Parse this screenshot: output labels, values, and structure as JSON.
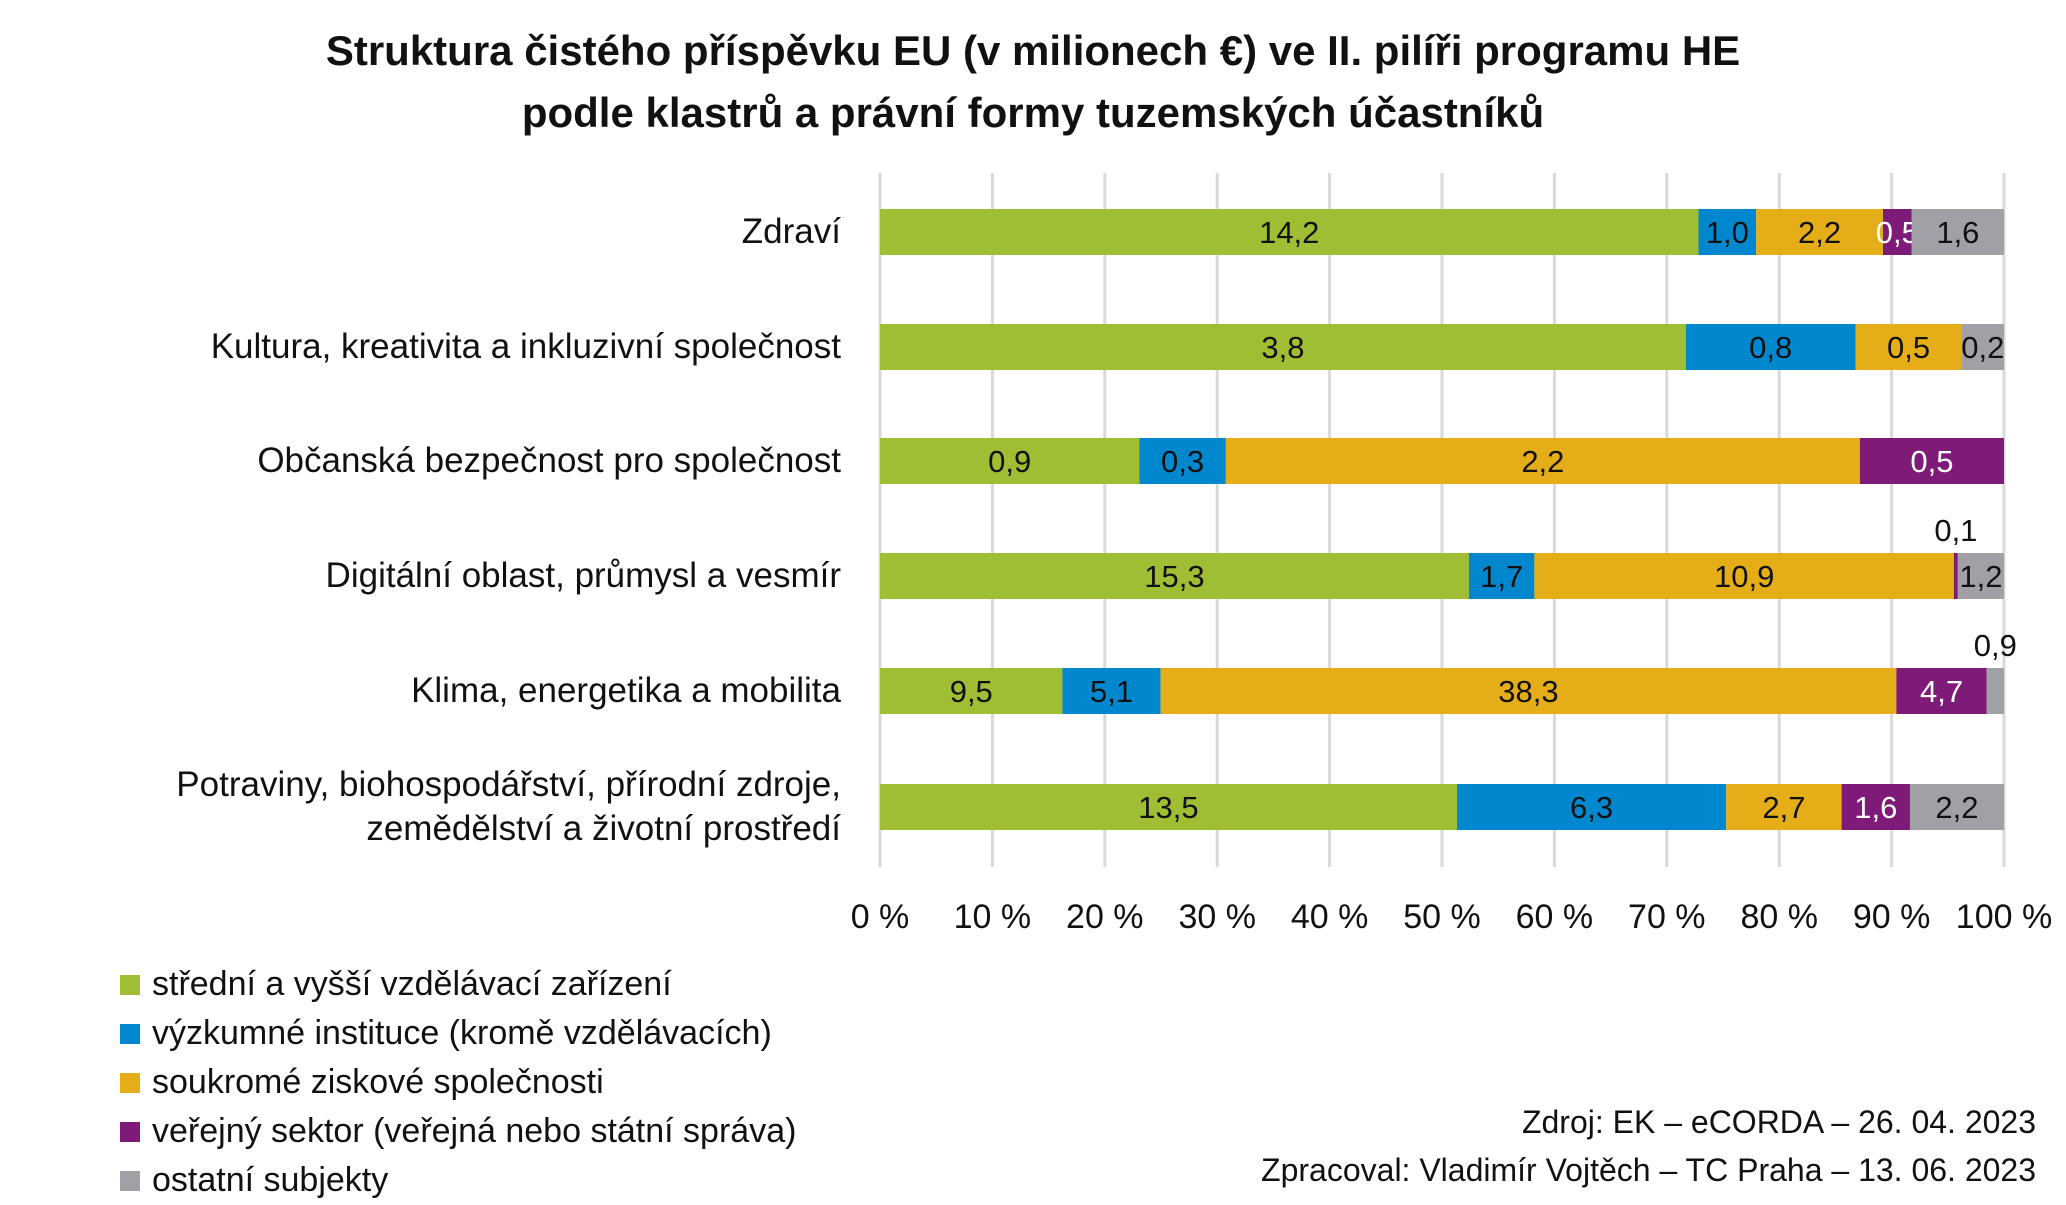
{
  "chart_data": {
    "type": "bar",
    "orientation": "horizontal",
    "stacked": "percent",
    "title": "Struktura čistého příspěvku EU (v milionech €) ve II. pilíři programu HE podle klastrů a právní formy tuzemských účastníků",
    "title_lines": [
      "Struktura čistého příspěvku EU (v milionech €) ve II. pilíři programu HE",
      "podle klastrů a právní formy tuzemských účastníků"
    ],
    "categories": [
      [
        "Zdraví"
      ],
      [
        "Kultura, kreativita a inkluzivní společnost"
      ],
      [
        "Občanská bezpečnost pro společnost"
      ],
      [
        "Digitální oblast, průmysl a vesmír"
      ],
      [
        "Klima, energetika a mobilita"
      ],
      [
        "Potraviny, biohospodářství, přírodní zdroje,",
        "zemědělství a životní prostředí"
      ]
    ],
    "series": [
      {
        "name": "střední a vyšší vzdělávací zařízení",
        "color": "#9fbe33",
        "values": [
          14.2,
          3.8,
          0.9,
          15.3,
          9.5,
          13.5
        ]
      },
      {
        "name": "výzkumné instituce (kromě vzdělávacích)",
        "color": "#0087cd",
        "values": [
          1.0,
          0.8,
          0.3,
          1.7,
          5.1,
          6.3
        ]
      },
      {
        "name": "soukromé ziskové společnosti",
        "color": "#e5ae18",
        "values": [
          2.2,
          0.5,
          2.2,
          10.9,
          38.3,
          2.7
        ]
      },
      {
        "name": "veřejný sektor (veřejná nebo státní správa)",
        "color": "#7e1b78",
        "values": [
          0.5,
          0,
          0.5,
          0.1,
          4.7,
          1.6
        ]
      },
      {
        "name": "ostatní subjekty",
        "color": "#a0a0a6",
        "values": [
          1.6,
          0.2,
          0,
          1.2,
          0.9,
          2.2
        ]
      }
    ],
    "xlim": [
      0,
      100
    ],
    "x_ticks": [
      "0 %",
      "10 %",
      "20 %",
      "30 %",
      "40 %",
      "50 %",
      "60 %",
      "70 %",
      "80 %",
      "90 %",
      "100 %"
    ],
    "grid": true,
    "legend_position": "bottom-left",
    "decimal_separator": ","
  },
  "source": {
    "line1": "Zdroj: EK – eCORDA – 26. 04. 2023",
    "line2": "Zpracoval: Vladimír Vojtěch – TC Praha – 13. 06. 2023"
  }
}
